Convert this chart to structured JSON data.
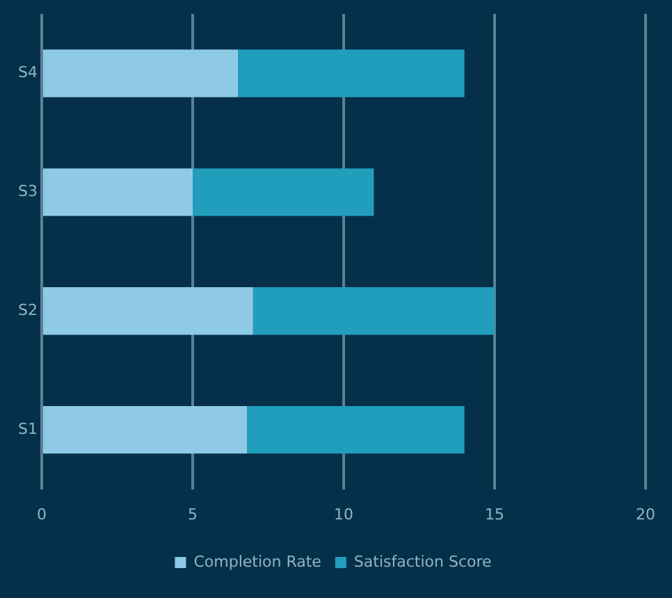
{
  "chart_data": {
    "type": "bar",
    "orientation": "horizontal",
    "stacked": true,
    "categories": [
      "S4",
      "S3",
      "S2",
      "S1"
    ],
    "series": [
      {
        "name": "Completion Rate",
        "color": "#8ecae6",
        "values": [
          6.5,
          5,
          7,
          6.8
        ]
      },
      {
        "name": "Satisfaction Score",
        "color": "#219ebc",
        "values": [
          7.5,
          6,
          8,
          7.2
        ]
      }
    ],
    "xlim": [
      0,
      20
    ],
    "xticks": [
      0,
      5,
      10,
      15,
      20
    ],
    "grid": "x",
    "legend": "bottom"
  }
}
